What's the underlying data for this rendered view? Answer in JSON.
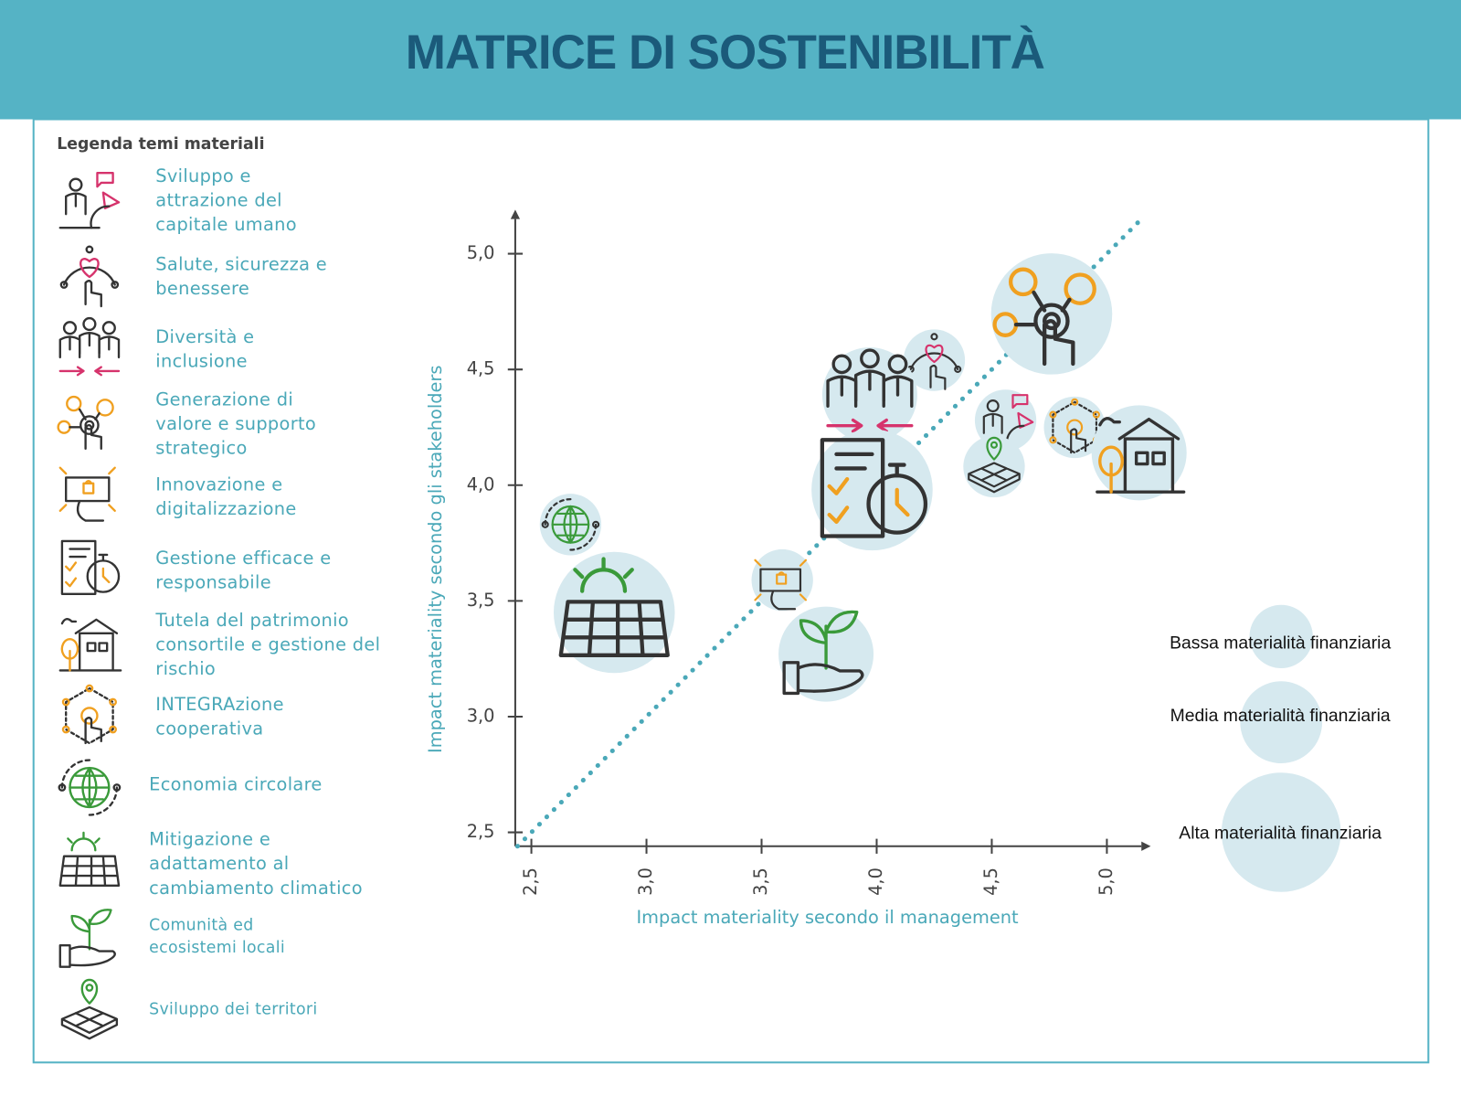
{
  "title": "MATRICE DI SOSTENIBILITÀ",
  "legend_title": "Legenda temi materiali",
  "chart_data": {
    "type": "bubble",
    "x_label": "Impact materiality secondo il management",
    "y_label": "Impact materiality secondo gli stakeholders",
    "xlim": [
      2.43,
      5.15
    ],
    "ylim": [
      2.44,
      5.15
    ],
    "xticks": [
      {
        "value": 2.5,
        "label": "2,5"
      },
      {
        "value": 3,
        "label": "3,0"
      },
      {
        "value": 3.5,
        "label": "3,5"
      },
      {
        "value": 4,
        "label": "4,0"
      },
      {
        "value": 4.5,
        "label": "4,5"
      },
      {
        "value": 5,
        "label": "5,0"
      }
    ],
    "yticks": [
      {
        "value": 2.5,
        "label": "2,5"
      },
      {
        "value": 3,
        "label": "3,0"
      },
      {
        "value": 3.5,
        "label": "3,5"
      },
      {
        "value": 4,
        "label": "4,0"
      },
      {
        "value": 4.5,
        "label": "4,5"
      },
      {
        "value": 5,
        "label": "5,0"
      }
    ],
    "diagonal_color": "#4aa8b8",
    "series": [
      {
        "name": "Bassa materialità finanziaria",
        "color": "#d6e9ef",
        "points": [
          {
            "name": "Sviluppo e attrazione del capitale umano",
            "x": 4.56,
            "y": 4.28
          },
          {
            "name": "Salute, sicurezza e benessere",
            "x": 4.25,
            "y": 4.54
          },
          {
            "name": "Innovazione e digitalizzazione",
            "x": 3.59,
            "y": 3.59
          },
          {
            "name": "INTEGRAzione cooperativa",
            "x": 4.86,
            "y": 4.25
          },
          {
            "name": "Economia circolare",
            "x": 2.67,
            "y": 3.83
          },
          {
            "name": "Sviluppo dei territori",
            "x": 4.51,
            "y": 4.08
          }
        ]
      },
      {
        "name": "Media materialità finanziaria",
        "color": "#d6e9ef",
        "points": [
          {
            "name": "Diversità e inclusione",
            "x": 3.97,
            "y": 4.39
          },
          {
            "name": "Tutela del patrimonio consortile e gestione del rischio",
            "x": 5.14,
            "y": 4.14
          },
          {
            "name": "Comunità ed ecosistemi locali",
            "x": 3.78,
            "y": 3.27
          }
        ]
      },
      {
        "name": "Alta materialità finanziaria",
        "color": "#d6e9ef",
        "points": [
          {
            "name": "Generazione di valore e supporto strategico",
            "x": 4.76,
            "y": 4.74
          },
          {
            "name": "Gestione efficace e responsabile",
            "x": 3.98,
            "y": 3.98
          },
          {
            "name": "Mitigazione e adattamento al cambiamento climatico",
            "x": 2.86,
            "y": 3.45
          }
        ]
      }
    ]
  }
}
